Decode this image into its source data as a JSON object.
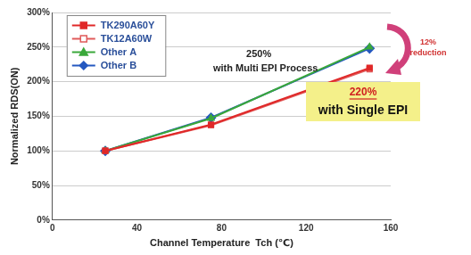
{
  "chart_data": {
    "type": "line",
    "x_label": "Channel Temperature  Tch (℃)",
    "y_label": "Normalized RDS(ON)",
    "x": [
      25,
      75,
      150
    ],
    "series": [
      {
        "name": "TK290A60Y",
        "color": "#e02828",
        "marker": "square",
        "values": [
          100,
          138,
          220
        ]
      },
      {
        "name": "TK12A60W",
        "color": "#e05a5a",
        "marker": "open square",
        "values": [
          100,
          137,
          218
        ]
      },
      {
        "name": "Other A",
        "color": "#3aa83a",
        "marker": "triangle",
        "values": [
          100,
          147,
          250
        ]
      },
      {
        "name": "Other B",
        "color": "#2458c0",
        "marker": "diamond",
        "values": [
          100,
          148,
          248
        ]
      }
    ],
    "xlim": [
      0,
      160
    ],
    "xticks": [
      0,
      40,
      80,
      120,
      160
    ],
    "ylim": [
      0,
      300
    ],
    "yticks": [
      {
        "value": 0,
        "label": "0%"
      },
      {
        "value": 50,
        "label": "50%"
      },
      {
        "value": 100,
        "label": "100%"
      },
      {
        "value": 150,
        "label": "150%"
      },
      {
        "value": 200,
        "label": "200%"
      },
      {
        "value": 250,
        "label": "250%"
      },
      {
        "value": 300,
        "label": "300%"
      }
    ],
    "annotations": [
      "250%",
      "with Multi EPI Process",
      "12%",
      "reduction",
      "220%",
      "with Single EPI"
    ],
    "grid": "y",
    "legend": "upper left"
  }
}
